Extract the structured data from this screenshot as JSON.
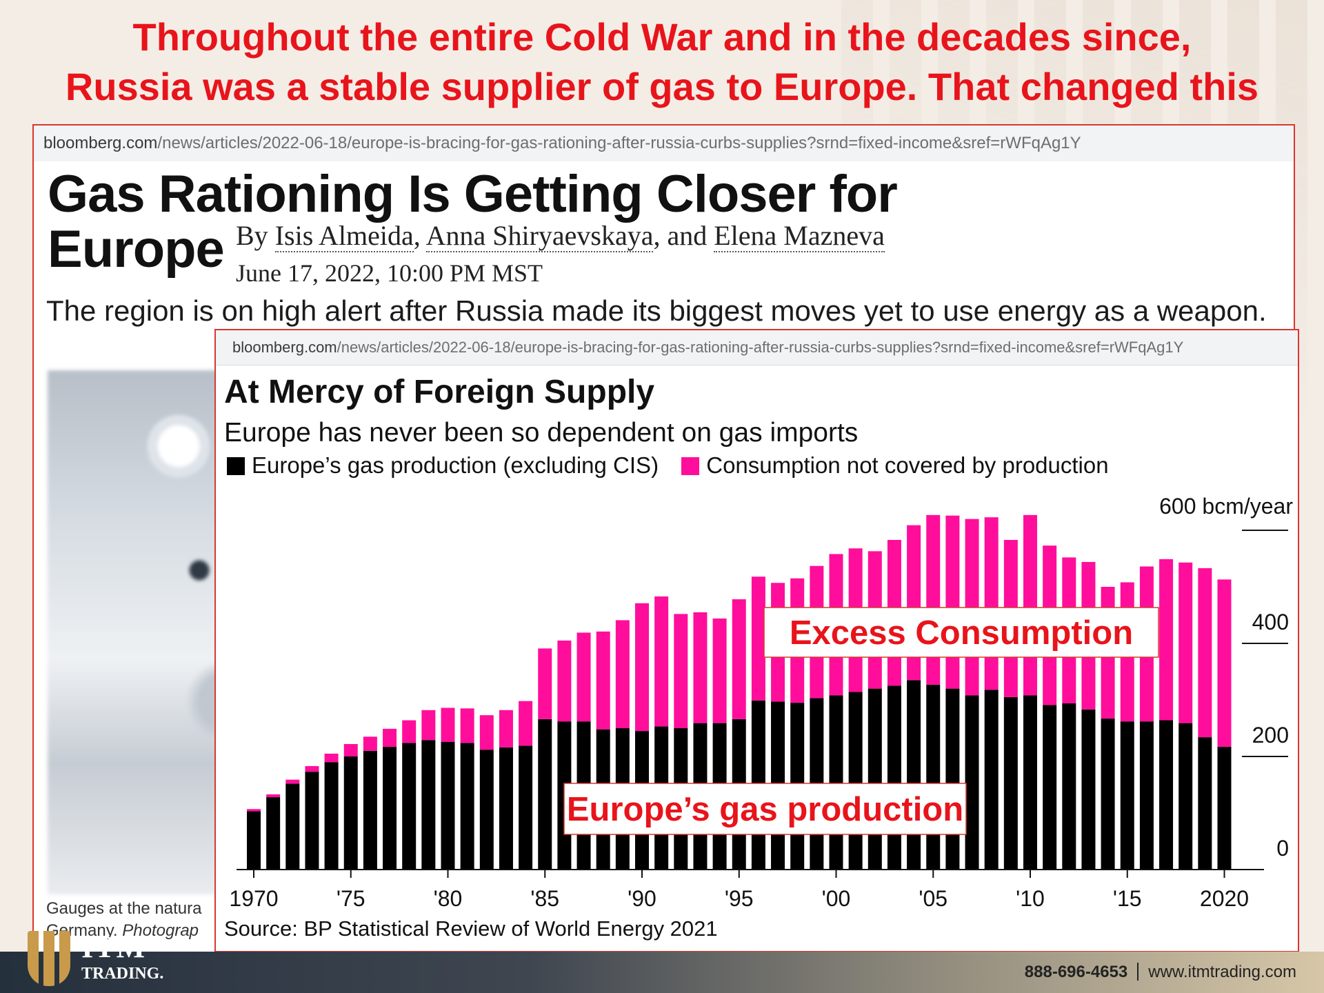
{
  "headline": {
    "line1": "Throughout the entire Cold War and in the decades since,",
    "line2": "Russia was a stable supplier of gas to Europe. That changed this"
  },
  "article": {
    "url_domain": "bloomberg.com",
    "url_path": "/news/articles/2022-06-18/europe-is-bracing-for-gas-rationing-after-russia-curbs-supplies?srnd=fixed-income&sref=rWFqAg1Y",
    "title_line1": "Gas Rationing Is Getting Closer for",
    "title_line2": "Europe",
    "by": "By",
    "author1": "Isis Almeida",
    "sep1": ",",
    "author2": "Anna Shiryaevskaya",
    "sep2": ", and",
    "author3": "Elena Mazneva",
    "date": "June 17, 2022, 10:00 PM MST",
    "dek": "The region is on high alert after Russia made its biggest moves yet to use energy as a weapon.",
    "caption_line1": "Gauges at the natura",
    "caption_line2a": "Germany.",
    "caption_line2b": "Photograp"
  },
  "chart_card": {
    "url_domain": "bloomberg.com",
    "url_path": "/news/articles/2022-06-18/europe-is-bracing-for-gas-rationing-after-russia-curbs-supplies?srnd=fixed-income&sref=rWFqAg1Y",
    "source": "Source: BP Statistical Review of World Energy 2021"
  },
  "chart_data": {
    "type": "bar",
    "stacked": true,
    "title": "At Mercy of Foreign Supply",
    "subtitle": "Europe has never been so dependent on gas imports",
    "ylabel": "",
    "y_unit_label": "600 bcm/year",
    "ylim": [
      0,
      600
    ],
    "yticks": [
      0,
      200,
      400
    ],
    "xtick_labels": [
      "1970",
      "'75",
      "'80",
      "'85",
      "'90",
      "'95",
      "'00",
      "'05",
      "'10",
      "'15",
      "2020"
    ],
    "categories": [
      1970,
      1971,
      1972,
      1973,
      1974,
      1975,
      1976,
      1977,
      1978,
      1979,
      1980,
      1981,
      1982,
      1983,
      1984,
      1985,
      1986,
      1987,
      1988,
      1989,
      1990,
      1991,
      1992,
      1993,
      1994,
      1995,
      1996,
      1997,
      1998,
      1999,
      2000,
      2001,
      2002,
      2003,
      2004,
      2005,
      2006,
      2007,
      2008,
      2009,
      2010,
      2011,
      2012,
      2013,
      2014,
      2015,
      2016,
      2017,
      2018,
      2019,
      2020
    ],
    "series": [
      {
        "name": "Europe’s gas production (excluding CIS)",
        "color": "#000000",
        "values": [
          103,
          128,
          152,
          173,
          190,
          200,
          210,
          217,
          224,
          229,
          226,
          224,
          212,
          216,
          219,
          266,
          262,
          262,
          248,
          250,
          245,
          253,
          250,
          259,
          259,
          266,
          299,
          297,
          295,
          303,
          308,
          314,
          320,
          325,
          335,
          327,
          320,
          308,
          318,
          305,
          308,
          291,
          294,
          283,
          267,
          262,
          262,
          264,
          259,
          234,
          217
        ]
      },
      {
        "name": "Consumption not covered by production",
        "color": "#ff0e9b",
        "values": [
          4,
          5,
          7,
          10,
          15,
          22,
          25,
          32,
          40,
          53,
          60,
          61,
          61,
          66,
          79,
          125,
          143,
          157,
          173,
          191,
          226,
          230,
          202,
          196,
          185,
          212,
          219,
          210,
          220,
          234,
          250,
          254,
          243,
          258,
          274,
          300,
          306,
          312,
          305,
          278,
          319,
          282,
          258,
          261,
          233,
          246,
          274,
          285,
          284,
          299,
          296
        ]
      }
    ],
    "annotations": [
      "Excess Consumption",
      "Europe’s gas production"
    ],
    "legend_position": "top-left",
    "grid": false
  },
  "footer": {
    "logo_itm": "ITM",
    "logo_trading": "TRADING.",
    "phone": "888-696-4653",
    "website": "www.itmtrading.com"
  }
}
